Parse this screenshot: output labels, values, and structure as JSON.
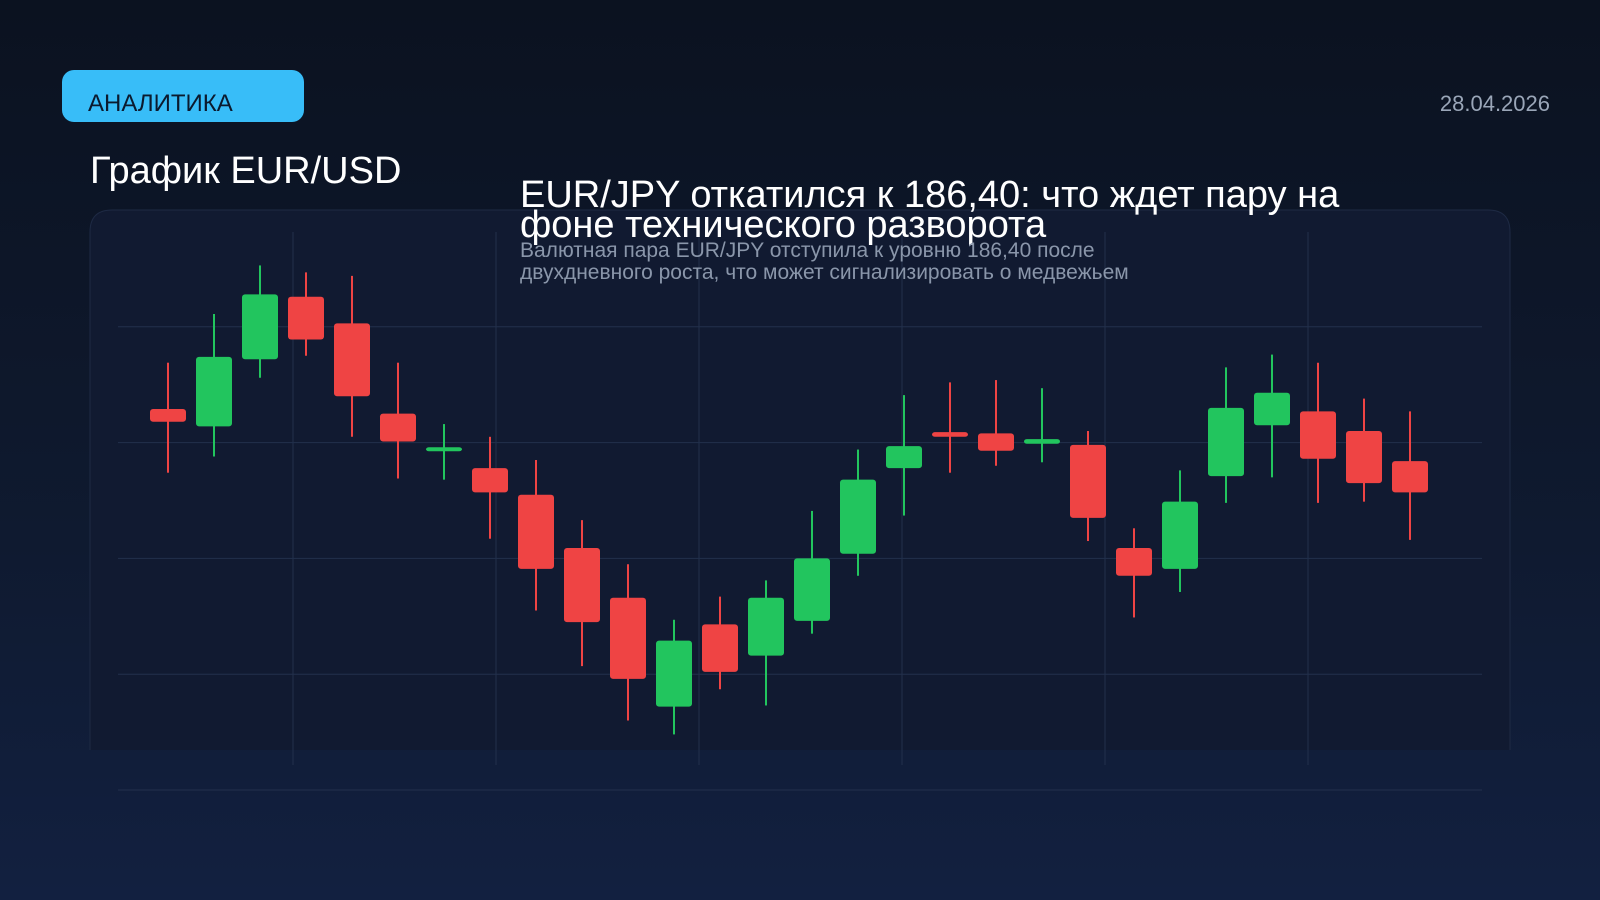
{
  "header": {
    "badge": "АНАЛИТИКА",
    "date": "28.04.2026"
  },
  "article": {
    "headline": "EUR/JPY откатился к 186,40: что ждет пару на фоне технического разворота",
    "summary": "Валютная пара EUR/JPY отступила к уровню 186,40 после двухдневного роста, что может сигнализировать о медвежьем"
  },
  "chart_data": {
    "type": "candlestick",
    "title": "График EUR/USD",
    "up_color": "#22c55e",
    "down_color": "#ef4444",
    "ylim": [
      0,
      5
    ],
    "yticks": [
      0,
      1,
      2,
      3,
      4
    ],
    "grid": true,
    "open": [
      3.29,
      3.14,
      3.72,
      4.26,
      4.03,
      3.25,
      2.93,
      2.78,
      2.55,
      2.09,
      1.66,
      0.72,
      1.43,
      1.16,
      1.46,
      2.04,
      2.78,
      3.09,
      3.08,
      2.99,
      2.98,
      2.09,
      1.91,
      2.71,
      3.15,
      3.27,
      3.1,
      2.84
    ],
    "high": [
      3.69,
      4.11,
      4.53,
      4.47,
      4.44,
      3.69,
      3.16,
      3.05,
      2.85,
      2.33,
      1.95,
      1.47,
      1.67,
      1.81,
      2.41,
      2.94,
      3.41,
      3.52,
      3.54,
      3.47,
      3.1,
      2.26,
      2.76,
      3.65,
      3.76,
      3.69,
      3.38,
      3.27
    ],
    "low": [
      2.74,
      2.88,
      3.56,
      3.75,
      3.05,
      2.69,
      2.68,
      2.17,
      1.55,
      1.07,
      0.6,
      0.48,
      0.87,
      0.73,
      1.35,
      1.85,
      2.37,
      2.74,
      2.8,
      2.83,
      2.15,
      1.49,
      1.71,
      2.48,
      2.7,
      2.48,
      2.49,
      2.16
    ],
    "close": [
      3.18,
      3.74,
      4.28,
      3.89,
      3.4,
      3.01,
      2.96,
      2.57,
      1.91,
      1.45,
      0.96,
      1.29,
      1.02,
      1.66,
      2.0,
      2.68,
      2.97,
      3.05,
      2.93,
      3.03,
      2.35,
      1.85,
      2.49,
      3.3,
      3.43,
      2.86,
      2.65,
      2.57
    ]
  }
}
